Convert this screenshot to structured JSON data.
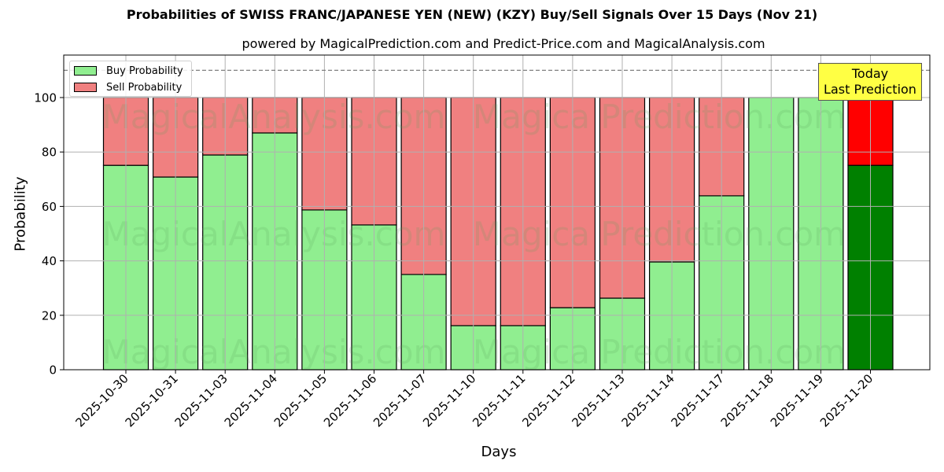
{
  "header": {
    "title": "Probabilities of SWISS FRANC/JAPANESE YEN (NEW) (KZY) Buy/Sell Signals Over 15 Days (Nov 21)",
    "subtitle": "powered by MagicalPrediction.com and Predict-Price.com and MagicalAnalysis.com"
  },
  "legend": {
    "buy_label": "Buy Probability",
    "sell_label": "Sell Probability"
  },
  "annotation": {
    "line1": "Today",
    "line2": "Last Prediction"
  },
  "axes": {
    "xlabel": "Days",
    "ylabel": "Probability",
    "yticks": [
      "0",
      "20",
      "40",
      "60",
      "80",
      "100"
    ]
  },
  "watermarks": [
    "MagicalAnalysis.com",
    "MagicalPrediction.com"
  ],
  "colors": {
    "buy": "#90ee90",
    "sell": "#f08080",
    "today_buy": "#008000",
    "today_sell": "#ff0000",
    "annotation_bg": "#ffff44"
  },
  "chart_data": {
    "type": "bar",
    "stacked": true,
    "title": "Probabilities of SWISS FRANC/JAPANESE YEN (NEW) (KZY) Buy/Sell Signals Over 15 Days (Nov 21)",
    "subtitle": "powered by MagicalPrediction.com and Predict-Price.com and MagicalAnalysis.com",
    "xlabel": "Days",
    "ylabel": "Probability",
    "ylim": [
      0,
      115
    ],
    "yticks": [
      0,
      20,
      40,
      60,
      80,
      100
    ],
    "grid": true,
    "legend_position": "upper left",
    "reference_line": {
      "y": 110,
      "style": "dashed"
    },
    "categories": [
      "2025-10-30",
      "2025-10-31",
      "2025-11-03",
      "2025-11-04",
      "2025-11-05",
      "2025-11-06",
      "2025-11-07",
      "2025-11-10",
      "2025-11-11",
      "2025-11-12",
      "2025-11-13",
      "2025-11-14",
      "2025-11-17",
      "2025-11-18",
      "2025-11-19",
      "2025-11-20"
    ],
    "series": [
      {
        "name": "Buy Probability",
        "values": [
          75.1,
          70.8,
          78.9,
          87.0,
          58.7,
          53.2,
          35.0,
          16.2,
          16.2,
          22.8,
          26.3,
          39.6,
          63.9,
          100,
          100,
          75.1
        ]
      },
      {
        "name": "Sell Probability",
        "values": [
          24.9,
          29.2,
          21.1,
          13.0,
          41.3,
          46.8,
          65.0,
          83.8,
          83.8,
          77.2,
          73.7,
          60.4,
          36.1,
          0,
          0,
          24.9
        ]
      }
    ],
    "annotations": [
      {
        "text": "Today\nLast Prediction",
        "x": "2025-11-20"
      }
    ]
  }
}
